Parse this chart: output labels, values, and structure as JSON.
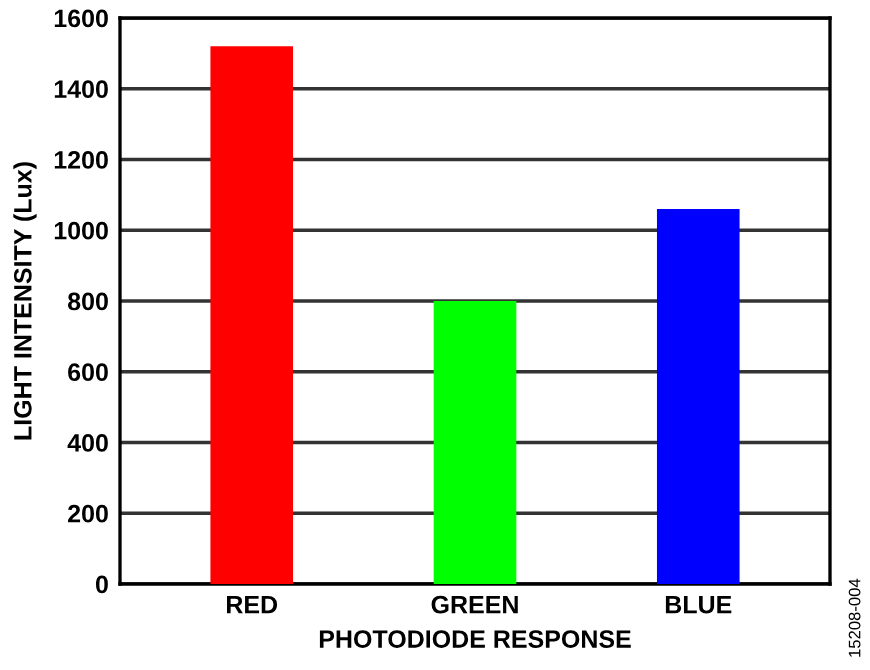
{
  "chart_data": {
    "type": "bar",
    "categories": [
      "RED",
      "GREEN",
      "BLUE"
    ],
    "values": [
      1520,
      800,
      1060
    ],
    "colors": [
      "#ff0000",
      "#00ff00",
      "#0000ff"
    ],
    "xlabel": "PHOTODIODE RESPONSE",
    "ylabel": "LIGHT INTENSITY (Lux)",
    "ylim": [
      0,
      1600
    ],
    "yticks": [
      0,
      200,
      400,
      600,
      800,
      1000,
      1200,
      1400,
      1600
    ],
    "grid": "y",
    "annotations": [
      "15208-004"
    ]
  }
}
